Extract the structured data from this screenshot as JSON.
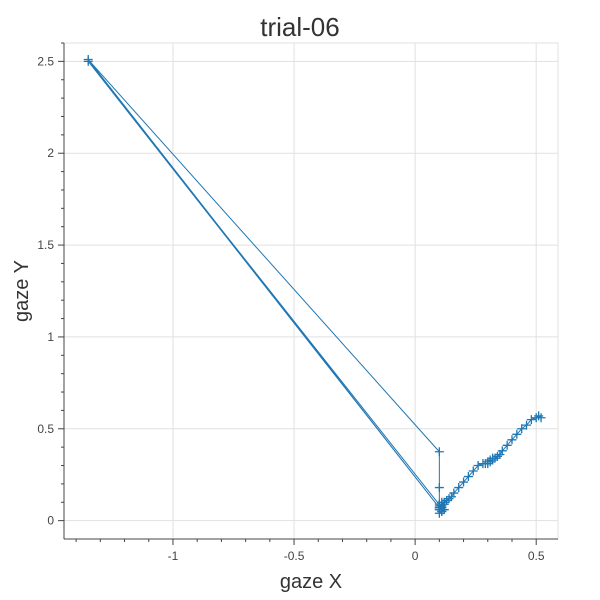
{
  "chart_data": {
    "type": "line",
    "title": "trial-06",
    "xlabel": "gaze X",
    "ylabel": "gaze Y",
    "xlim": [
      -1.45,
      0.59
    ],
    "ylim": [
      -0.1,
      2.6
    ],
    "x_ticks": [
      -1,
      -0.5,
      0,
      0.5
    ],
    "x_tick_labels": [
      "-1",
      "-0.5",
      "0",
      "0.5"
    ],
    "y_ticks": [
      0,
      0.5,
      1,
      1.5,
      2,
      2.5
    ],
    "y_tick_labels": [
      "0",
      "0.5",
      "1",
      "1.5",
      "2",
      "2.5"
    ],
    "grid": true,
    "marker": "cross",
    "color": "#1f77b4",
    "series": [
      {
        "x": [
          0.52,
          0.51,
          0.5,
          0.48,
          0.46,
          0.44,
          0.42,
          0.4,
          0.38,
          0.36,
          0.35,
          0.34,
          0.33,
          0.32,
          0.32,
          0.31,
          0.31,
          0.3,
          0.3,
          0.29,
          0.28,
          0.26,
          0.24,
          0.22,
          0.2,
          0.18,
          0.16,
          0.15,
          0.14,
          0.13,
          0.12,
          0.12,
          0.11,
          0.11,
          0.1,
          0.1,
          0.11,
          0.12,
          0.11,
          0.1,
          0.1,
          0.1,
          0.1,
          -1.35,
          0.1,
          0.11,
          0.1,
          0.11,
          0.12,
          0.11,
          0.12,
          0.1,
          0.11,
          -1.35,
          0.1,
          0.1
        ],
        "y": [
          0.56,
          0.57,
          0.56,
          0.55,
          0.52,
          0.5,
          0.47,
          0.44,
          0.41,
          0.38,
          0.36,
          0.35,
          0.34,
          0.34,
          0.33,
          0.32,
          0.33,
          0.32,
          0.31,
          0.31,
          0.31,
          0.3,
          0.27,
          0.24,
          0.21,
          0.18,
          0.15,
          0.13,
          0.12,
          0.11,
          0.1,
          0.09,
          0.08,
          0.07,
          0.06,
          0.08,
          0.07,
          0.06,
          0.05,
          0.04,
          0.06,
          0.18,
          0.375,
          2.51,
          0.07,
          0.08,
          0.07,
          0.1,
          0.09,
          0.05,
          0.06,
          0.09,
          0.07,
          2.5,
          0.07,
          0.07
        ]
      }
    ]
  }
}
